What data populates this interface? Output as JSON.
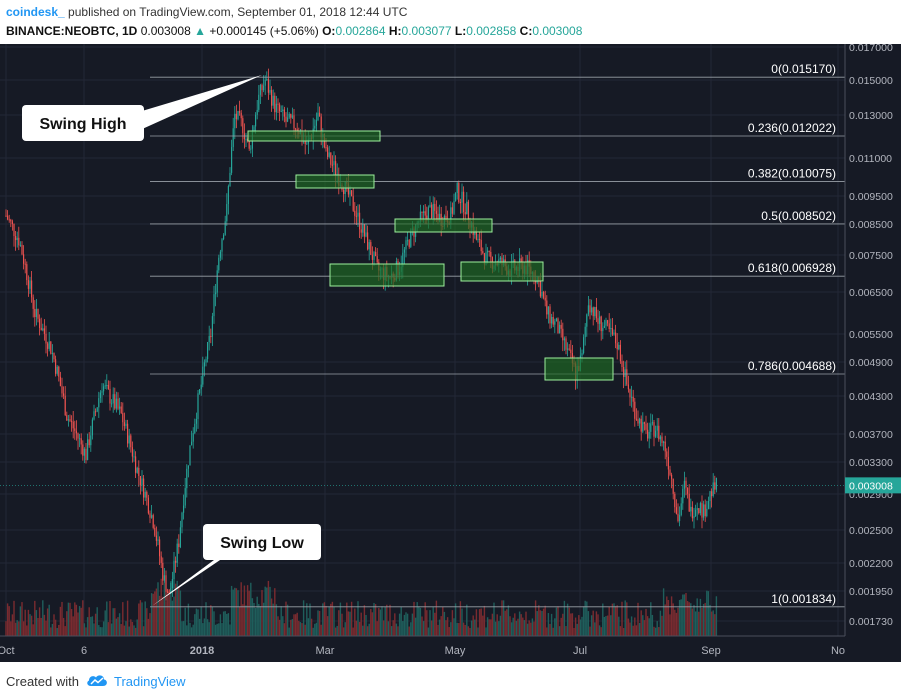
{
  "header": {
    "author": "coindesk_",
    "published": "published on TradingView.com, September 01, 2018 12:44 UTC",
    "symbol": "BINANCE:NEOBTC, 1D",
    "last": "0.003008",
    "change": "+0.000145 (+5.06%)",
    "open_label": "O:",
    "open": "0.002864",
    "high_label": "H:",
    "high": "0.003077",
    "low_label": "L:",
    "low": "0.002858",
    "close_label": "C:",
    "close": "0.003008"
  },
  "footer": {
    "created_with": "Created with",
    "brand": "TradingView"
  },
  "colors": {
    "background": "#161a25",
    "up": "#26a69a",
    "down": "#ef5350",
    "fib_line": "#9aa0a8",
    "zone_fill": "#1f6b22",
    "zone_border": "#9cf09c",
    "text": "#ffffff",
    "axis_text": "#b2b5be"
  },
  "chart_data": {
    "type": "candlestick",
    "y_ticks": [
      "0.017000",
      "0.015000",
      "0.013000",
      "0.011000",
      "0.009500",
      "0.008500",
      "0.007500",
      "0.006500",
      "0.005500",
      "0.004900",
      "0.004300",
      "0.003700",
      "0.003300",
      "0.002900",
      "0.002500",
      "0.002200",
      "0.001950",
      "0.001730"
    ],
    "x_ticks": [
      "Oct",
      "6",
      "2018",
      "Mar",
      "May",
      "Jul",
      "Sep",
      "No"
    ],
    "last_price_label": "0.003008",
    "fib_levels": [
      {
        "ratio": "0",
        "label": "0(0.015170)",
        "value": 0.01517
      },
      {
        "ratio": "0.236",
        "label": "0.236(0.012022)",
        "value": 0.012022
      },
      {
        "ratio": "0.382",
        "label": "0.382(0.010075)",
        "value": 0.010075
      },
      {
        "ratio": "0.5",
        "label": "0.5(0.008502)",
        "value": 0.008502
      },
      {
        "ratio": "0.618",
        "label": "0.618(0.006928)",
        "value": 0.006928
      },
      {
        "ratio": "0.786",
        "label": "0.786(0.004688)",
        "value": 0.004688
      },
      {
        "ratio": "1",
        "label": "1(0.001834)",
        "value": 0.001834
      }
    ],
    "annotations": [
      {
        "text": "Swing High",
        "value": 0.01517
      },
      {
        "text": "Swing Low",
        "value": 0.001834
      }
    ],
    "price_path": [
      {
        "d": 0,
        "v": 0.0088
      },
      {
        "d": 8,
        "v": 0.008
      },
      {
        "d": 18,
        "v": 0.006
      },
      {
        "d": 28,
        "v": 0.0052
      },
      {
        "d": 38,
        "v": 0.004
      },
      {
        "d": 50,
        "v": 0.0034
      },
      {
        "d": 60,
        "v": 0.0045
      },
      {
        "d": 72,
        "v": 0.004
      },
      {
        "d": 82,
        "v": 0.0032
      },
      {
        "d": 92,
        "v": 0.0026
      },
      {
        "d": 98,
        "v": 0.0021
      },
      {
        "d": 102,
        "v": 0.0019
      },
      {
        "d": 108,
        "v": 0.0024
      },
      {
        "d": 115,
        "v": 0.0035
      },
      {
        "d": 122,
        "v": 0.0045
      },
      {
        "d": 128,
        "v": 0.0055
      },
      {
        "d": 133,
        "v": 0.0075
      },
      {
        "d": 138,
        "v": 0.009
      },
      {
        "d": 143,
        "v": 0.013
      },
      {
        "d": 148,
        "v": 0.0125
      },
      {
        "d": 152,
        "v": 0.0113
      },
      {
        "d": 158,
        "v": 0.014
      },
      {
        "d": 162,
        "v": 0.015
      },
      {
        "d": 168,
        "v": 0.0135
      },
      {
        "d": 175,
        "v": 0.0127
      },
      {
        "d": 182,
        "v": 0.0125
      },
      {
        "d": 188,
        "v": 0.0115
      },
      {
        "d": 195,
        "v": 0.013
      },
      {
        "d": 200,
        "v": 0.0112
      },
      {
        "d": 206,
        "v": 0.0105
      },
      {
        "d": 212,
        "v": 0.0098
      },
      {
        "d": 218,
        "v": 0.009
      },
      {
        "d": 225,
        "v": 0.008
      },
      {
        "d": 232,
        "v": 0.0071
      },
      {
        "d": 240,
        "v": 0.0069
      },
      {
        "d": 246,
        "v": 0.0072
      },
      {
        "d": 252,
        "v": 0.008
      },
      {
        "d": 258,
        "v": 0.0086
      },
      {
        "d": 265,
        "v": 0.009
      },
      {
        "d": 272,
        "v": 0.0087
      },
      {
        "d": 278,
        "v": 0.0088
      },
      {
        "d": 282,
        "v": 0.0097
      },
      {
        "d": 288,
        "v": 0.009
      },
      {
        "d": 294,
        "v": 0.008
      },
      {
        "d": 300,
        "v": 0.0074
      },
      {
        "d": 308,
        "v": 0.0073
      },
      {
        "d": 316,
        "v": 0.0071
      },
      {
        "d": 324,
        "v": 0.0072
      },
      {
        "d": 332,
        "v": 0.0069
      },
      {
        "d": 338,
        "v": 0.006
      },
      {
        "d": 344,
        "v": 0.0057
      },
      {
        "d": 350,
        "v": 0.0052
      },
      {
        "d": 356,
        "v": 0.0047
      },
      {
        "d": 360,
        "v": 0.005
      },
      {
        "d": 364,
        "v": 0.0063
      },
      {
        "d": 370,
        "v": 0.0058
      },
      {
        "d": 376,
        "v": 0.0056
      },
      {
        "d": 382,
        "v": 0.0053
      },
      {
        "d": 388,
        "v": 0.0045
      },
      {
        "d": 394,
        "v": 0.004
      },
      {
        "d": 400,
        "v": 0.0037
      },
      {
        "d": 406,
        "v": 0.0038
      },
      {
        "d": 412,
        "v": 0.0035
      },
      {
        "d": 416,
        "v": 0.0031
      },
      {
        "d": 420,
        "v": 0.0026
      },
      {
        "d": 424,
        "v": 0.003
      },
      {
        "d": 428,
        "v": 0.0027
      },
      {
        "d": 432,
        "v": 0.0028
      },
      {
        "d": 436,
        "v": 0.0027
      },
      {
        "d": 440,
        "v": 0.0029
      },
      {
        "d": 444,
        "v": 0.003
      }
    ]
  }
}
